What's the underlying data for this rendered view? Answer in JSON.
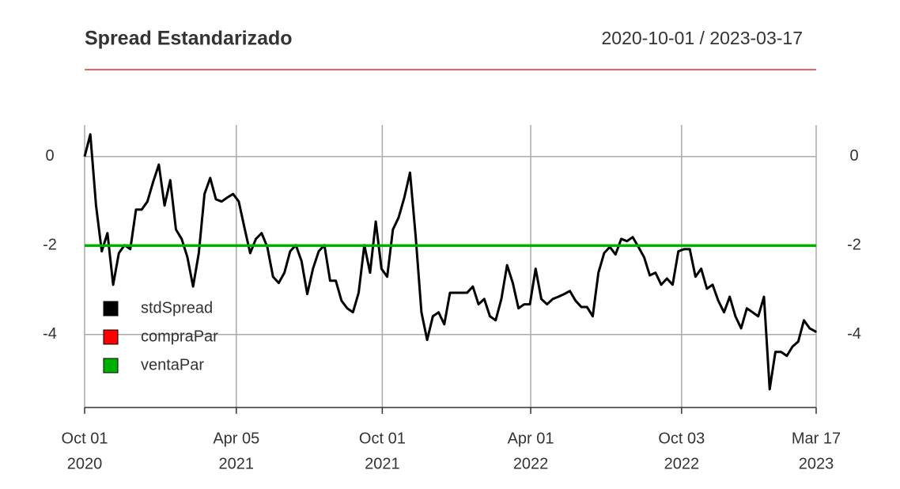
{
  "chart_data": {
    "type": "line",
    "title": "Spread Estandarizado",
    "subtitle": "2020-10-01 / 2023-03-17",
    "x": [
      "2020-10-01",
      "2020-10-08",
      "2020-10-15",
      "2020-10-22",
      "2020-10-29",
      "2020-11-05",
      "2020-11-12",
      "2020-11-19",
      "2020-11-26",
      "2020-12-03",
      "2020-12-10",
      "2020-12-17",
      "2020-12-24",
      "2020-12-31",
      "2021-01-07",
      "2021-01-14",
      "2021-01-21",
      "2021-01-28",
      "2021-02-04",
      "2021-02-11",
      "2021-02-18",
      "2021-02-25",
      "2021-03-04",
      "2021-03-11",
      "2021-03-18",
      "2021-03-25",
      "2021-04-01",
      "2021-04-08",
      "2021-04-15",
      "2021-04-22",
      "2021-04-29",
      "2021-05-06",
      "2021-05-13",
      "2021-05-20",
      "2021-05-27",
      "2021-06-03",
      "2021-06-10",
      "2021-06-17",
      "2021-06-24",
      "2021-07-01",
      "2021-07-08",
      "2021-07-15",
      "2021-07-22",
      "2021-07-29",
      "2021-08-05",
      "2021-08-12",
      "2021-08-19",
      "2021-08-26",
      "2021-09-02",
      "2021-09-09",
      "2021-09-16",
      "2021-09-23",
      "2021-09-30",
      "2021-10-07",
      "2021-10-14",
      "2021-10-21",
      "2021-10-28",
      "2021-11-04",
      "2021-11-11",
      "2021-11-18",
      "2021-11-25",
      "2021-12-02",
      "2021-12-09",
      "2021-12-16",
      "2021-12-23",
      "2021-12-30",
      "2022-01-06",
      "2022-01-13",
      "2022-01-20",
      "2022-01-27",
      "2022-02-03",
      "2022-02-10",
      "2022-02-17",
      "2022-02-24",
      "2022-03-03",
      "2022-03-10",
      "2022-03-17",
      "2022-03-24",
      "2022-03-31",
      "2022-04-07",
      "2022-04-14",
      "2022-04-21",
      "2022-04-28",
      "2022-05-05",
      "2022-05-12",
      "2022-05-19",
      "2022-05-26",
      "2022-06-02",
      "2022-06-09",
      "2022-06-16",
      "2022-06-23",
      "2022-06-30",
      "2022-07-07",
      "2022-07-14",
      "2022-07-21",
      "2022-07-28",
      "2022-08-04",
      "2022-08-11",
      "2022-08-18",
      "2022-08-25",
      "2022-09-01",
      "2022-09-08",
      "2022-09-15",
      "2022-09-22",
      "2022-09-29",
      "2022-10-06",
      "2022-10-13",
      "2022-10-20",
      "2022-10-27",
      "2022-11-03",
      "2022-11-10",
      "2022-11-17",
      "2022-11-24",
      "2022-12-01",
      "2022-12-08",
      "2022-12-15",
      "2022-12-22",
      "2022-12-29",
      "2023-01-05",
      "2023-01-12",
      "2023-01-19",
      "2023-01-26",
      "2023-02-02",
      "2023-02-09",
      "2023-02-16",
      "2023-02-23",
      "2023-03-02",
      "2023-03-09",
      "2023-03-16",
      "2023-03-17"
    ],
    "series": [
      {
        "name": "stdSpread",
        "color": "#000000",
        "values": [
          0,
          0.5,
          -1.1,
          -2.13,
          -1.72,
          -2.88,
          -2.17,
          -1.99,
          -2.08,
          -1.19,
          -1.19,
          -1.01,
          -0.57,
          -0.18,
          -1.1,
          -0.53,
          -1.64,
          -1.85,
          -2.26,
          -2.92,
          -2.17,
          -0.84,
          -0.48,
          -0.96,
          -1.01,
          -0.92,
          -0.84,
          -1.01,
          -1.6,
          -2.17,
          -1.85,
          -1.72,
          -2.03,
          -2.7,
          -2.84,
          -2.61,
          -2.13,
          -1.99,
          -2.35,
          -3.09,
          -2.52,
          -2.13,
          -1.99,
          -2.79,
          -2.79,
          -3.24,
          -3.41,
          -3.5,
          -3.06,
          -1.99,
          -2.61,
          -1.46,
          -2.52,
          -2.7,
          -1.64,
          -1.37,
          -0.92,
          -0.36,
          -1.81,
          -3.5,
          -4.12,
          -3.59,
          -3.5,
          -3.77,
          -3.06,
          -3.06,
          -3.06,
          -3.06,
          -2.92,
          -3.32,
          -3.2,
          -3.59,
          -3.68,
          -3.2,
          -2.44,
          -2.84,
          -3.41,
          -3.32,
          -3.32,
          -2.52,
          -3.2,
          -3.32,
          -3.2,
          -3.15,
          -3.09,
          -3.02,
          -3.24,
          -3.38,
          -3.38,
          -3.59,
          -2.61,
          -2.17,
          -2.03,
          -2.2,
          -1.85,
          -1.9,
          -1.81,
          -2.03,
          -2.26,
          -2.67,
          -2.61,
          -2.88,
          -2.74,
          -2.88,
          -2.13,
          -2.08,
          -2.08,
          -2.7,
          -2.52,
          -2.97,
          -2.88,
          -3.24,
          -3.5,
          -3.15,
          -3.59,
          -3.86,
          -3.41,
          -3.5,
          -3.59,
          -3.15,
          -5.23,
          -4.39,
          -4.39,
          -4.48,
          -4.27,
          -4.16,
          -3.68,
          -3.86,
          -3.93,
          -3.95
        ]
      },
      {
        "name": "compraPar",
        "color": "#ff0000"
      },
      {
        "name": "ventaPar",
        "color": "#00b000",
        "level": -2
      }
    ],
    "xlim": [
      "2020-10-01",
      "2023-03-17"
    ],
    "xticks": [
      {
        "value": "2020-10-01",
        "label": [
          "Oct 01",
          "2020"
        ]
      },
      {
        "value": "2021-04-05",
        "label": [
          "Apr 05",
          "2021"
        ]
      },
      {
        "value": "2021-10-01",
        "label": [
          "Oct 01",
          "2021"
        ]
      },
      {
        "value": "2022-04-01",
        "label": [
          "Apr 01",
          "2022"
        ]
      },
      {
        "value": "2022-10-03",
        "label": [
          "Oct 03",
          "2022"
        ]
      },
      {
        "value": "2023-03-17",
        "label": [
          "Mar 17",
          "2023"
        ]
      }
    ],
    "ylim": [
      -5.64,
      0.71
    ],
    "yticks": [
      0,
      -2,
      -4
    ],
    "grid": true,
    "legend": "bottom-left"
  }
}
